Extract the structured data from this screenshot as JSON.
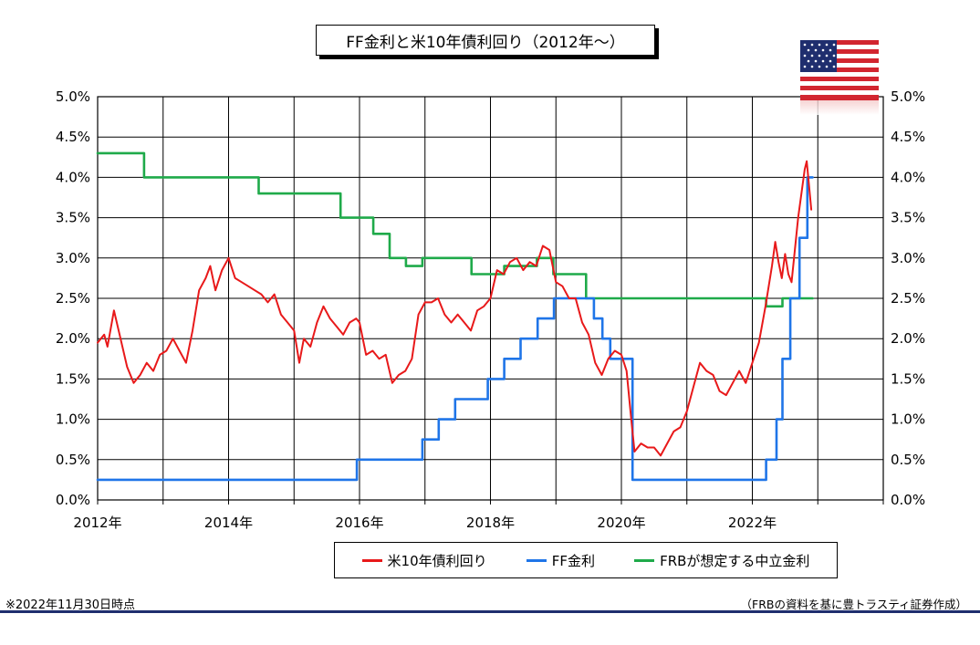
{
  "footnote": "※2022年11月30日時点",
  "source": "（FRBの資料を基に豊トラスティ証券作成）",
  "chart_data": {
    "type": "line",
    "title": "FF金利と米10年債利回り（2012年～）",
    "xlim": [
      2012.0,
      2024.0
    ],
    "ylim": [
      0.0,
      5.0
    ],
    "grid": true,
    "legend_position": "bottom",
    "y_ticks": [
      "0.0%",
      "0.5%",
      "1.0%",
      "1.5%",
      "2.0%",
      "2.5%",
      "3.0%",
      "3.5%",
      "4.0%",
      "4.5%",
      "5.0%"
    ],
    "x_ticks": [
      {
        "year": 2012,
        "label": "2012年"
      },
      {
        "year": 2014,
        "label": "2014年"
      },
      {
        "year": 2016,
        "label": "2016年"
      },
      {
        "year": 2018,
        "label": "2018年"
      },
      {
        "year": 2020,
        "label": "2020年"
      },
      {
        "year": 2022,
        "label": "2022年"
      }
    ],
    "series": [
      {
        "name": "米10年債利回り",
        "color": "#e8191a",
        "step": false,
        "points": [
          [
            2012.0,
            1.95
          ],
          [
            2012.1,
            2.05
          ],
          [
            2012.15,
            1.9
          ],
          [
            2012.25,
            2.35
          ],
          [
            2012.35,
            2.0
          ],
          [
            2012.45,
            1.65
          ],
          [
            2012.55,
            1.45
          ],
          [
            2012.65,
            1.55
          ],
          [
            2012.75,
            1.7
          ],
          [
            2012.85,
            1.6
          ],
          [
            2012.95,
            1.8
          ],
          [
            2013.05,
            1.85
          ],
          [
            2013.15,
            2.0
          ],
          [
            2013.25,
            1.85
          ],
          [
            2013.35,
            1.7
          ],
          [
            2013.45,
            2.1
          ],
          [
            2013.55,
            2.6
          ],
          [
            2013.65,
            2.75
          ],
          [
            2013.72,
            2.9
          ],
          [
            2013.8,
            2.6
          ],
          [
            2013.9,
            2.85
          ],
          [
            2014.0,
            3.0
          ],
          [
            2014.1,
            2.75
          ],
          [
            2014.2,
            2.7
          ],
          [
            2014.3,
            2.65
          ],
          [
            2014.4,
            2.6
          ],
          [
            2014.5,
            2.55
          ],
          [
            2014.6,
            2.45
          ],
          [
            2014.7,
            2.55
          ],
          [
            2014.8,
            2.3
          ],
          [
            2014.9,
            2.2
          ],
          [
            2015.0,
            2.1
          ],
          [
            2015.08,
            1.7
          ],
          [
            2015.15,
            2.0
          ],
          [
            2015.25,
            1.9
          ],
          [
            2015.35,
            2.2
          ],
          [
            2015.45,
            2.4
          ],
          [
            2015.55,
            2.25
          ],
          [
            2015.65,
            2.15
          ],
          [
            2015.75,
            2.05
          ],
          [
            2015.85,
            2.2
          ],
          [
            2015.95,
            2.25
          ],
          [
            2016.0,
            2.2
          ],
          [
            2016.1,
            1.8
          ],
          [
            2016.2,
            1.85
          ],
          [
            2016.3,
            1.75
          ],
          [
            2016.4,
            1.8
          ],
          [
            2016.5,
            1.45
          ],
          [
            2016.6,
            1.55
          ],
          [
            2016.7,
            1.6
          ],
          [
            2016.8,
            1.75
          ],
          [
            2016.9,
            2.3
          ],
          [
            2017.0,
            2.45
          ],
          [
            2017.1,
            2.45
          ],
          [
            2017.2,
            2.5
          ],
          [
            2017.3,
            2.3
          ],
          [
            2017.4,
            2.2
          ],
          [
            2017.5,
            2.3
          ],
          [
            2017.6,
            2.2
          ],
          [
            2017.7,
            2.1
          ],
          [
            2017.8,
            2.35
          ],
          [
            2017.9,
            2.4
          ],
          [
            2018.0,
            2.5
          ],
          [
            2018.1,
            2.85
          ],
          [
            2018.2,
            2.8
          ],
          [
            2018.3,
            2.95
          ],
          [
            2018.4,
            3.0
          ],
          [
            2018.5,
            2.85
          ],
          [
            2018.6,
            2.95
          ],
          [
            2018.7,
            2.9
          ],
          [
            2018.8,
            3.15
          ],
          [
            2018.9,
            3.1
          ],
          [
            2019.0,
            2.7
          ],
          [
            2019.1,
            2.65
          ],
          [
            2019.2,
            2.5
          ],
          [
            2019.3,
            2.5
          ],
          [
            2019.4,
            2.2
          ],
          [
            2019.5,
            2.05
          ],
          [
            2019.6,
            1.7
          ],
          [
            2019.7,
            1.55
          ],
          [
            2019.8,
            1.75
          ],
          [
            2019.9,
            1.85
          ],
          [
            2020.0,
            1.8
          ],
          [
            2020.08,
            1.6
          ],
          [
            2020.15,
            1.0
          ],
          [
            2020.2,
            0.6
          ],
          [
            2020.3,
            0.7
          ],
          [
            2020.4,
            0.65
          ],
          [
            2020.5,
            0.65
          ],
          [
            2020.6,
            0.55
          ],
          [
            2020.7,
            0.7
          ],
          [
            2020.8,
            0.85
          ],
          [
            2020.9,
            0.9
          ],
          [
            2021.0,
            1.1
          ],
          [
            2021.1,
            1.4
          ],
          [
            2021.2,
            1.7
          ],
          [
            2021.3,
            1.6
          ],
          [
            2021.4,
            1.55
          ],
          [
            2021.5,
            1.35
          ],
          [
            2021.6,
            1.3
          ],
          [
            2021.7,
            1.45
          ],
          [
            2021.8,
            1.6
          ],
          [
            2021.9,
            1.45
          ],
          [
            2022.0,
            1.7
          ],
          [
            2022.1,
            1.95
          ],
          [
            2022.2,
            2.4
          ],
          [
            2022.3,
            2.9
          ],
          [
            2022.35,
            3.2
          ],
          [
            2022.4,
            2.95
          ],
          [
            2022.45,
            2.75
          ],
          [
            2022.5,
            3.05
          ],
          [
            2022.55,
            2.8
          ],
          [
            2022.6,
            2.7
          ],
          [
            2022.65,
            3.1
          ],
          [
            2022.7,
            3.5
          ],
          [
            2022.75,
            3.8
          ],
          [
            2022.8,
            4.1
          ],
          [
            2022.83,
            4.2
          ],
          [
            2022.86,
            3.95
          ],
          [
            2022.9,
            3.6
          ]
        ]
      },
      {
        "name": "FF金利",
        "color": "#1f75e8",
        "step": true,
        "points": [
          [
            2012.0,
            0.25
          ],
          [
            2015.96,
            0.25
          ],
          [
            2015.96,
            0.5
          ],
          [
            2016.96,
            0.5
          ],
          [
            2016.96,
            0.75
          ],
          [
            2017.21,
            0.75
          ],
          [
            2017.21,
            1.0
          ],
          [
            2017.46,
            1.0
          ],
          [
            2017.46,
            1.25
          ],
          [
            2017.96,
            1.25
          ],
          [
            2017.96,
            1.5
          ],
          [
            2018.21,
            1.5
          ],
          [
            2018.21,
            1.75
          ],
          [
            2018.46,
            1.75
          ],
          [
            2018.46,
            2.0
          ],
          [
            2018.72,
            2.0
          ],
          [
            2018.72,
            2.25
          ],
          [
            2018.97,
            2.25
          ],
          [
            2018.97,
            2.5
          ],
          [
            2019.58,
            2.5
          ],
          [
            2019.58,
            2.25
          ],
          [
            2019.71,
            2.25
          ],
          [
            2019.71,
            2.0
          ],
          [
            2019.83,
            2.0
          ],
          [
            2019.83,
            1.75
          ],
          [
            2020.17,
            1.75
          ],
          [
            2020.17,
            0.25
          ],
          [
            2022.21,
            0.25
          ],
          [
            2022.21,
            0.5
          ],
          [
            2022.37,
            0.5
          ],
          [
            2022.37,
            1.0
          ],
          [
            2022.46,
            1.0
          ],
          [
            2022.46,
            1.75
          ],
          [
            2022.58,
            1.75
          ],
          [
            2022.58,
            2.5
          ],
          [
            2022.72,
            2.5
          ],
          [
            2022.72,
            3.25
          ],
          [
            2022.84,
            3.25
          ],
          [
            2022.84,
            4.0
          ],
          [
            2022.92,
            4.0
          ]
        ]
      },
      {
        "name": "FRBが想定する中立金利",
        "color": "#1faa4a",
        "step": true,
        "points": [
          [
            2012.0,
            4.3
          ],
          [
            2012.71,
            4.3
          ],
          [
            2012.71,
            4.0
          ],
          [
            2014.46,
            4.0
          ],
          [
            2014.46,
            3.8
          ],
          [
            2015.71,
            3.8
          ],
          [
            2015.71,
            3.5
          ],
          [
            2016.21,
            3.5
          ],
          [
            2016.21,
            3.3
          ],
          [
            2016.46,
            3.3
          ],
          [
            2016.46,
            3.0
          ],
          [
            2016.71,
            3.0
          ],
          [
            2016.71,
            2.9
          ],
          [
            2016.96,
            2.9
          ],
          [
            2016.96,
            3.0
          ],
          [
            2017.71,
            3.0
          ],
          [
            2017.71,
            2.8
          ],
          [
            2018.21,
            2.8
          ],
          [
            2018.21,
            2.9
          ],
          [
            2018.71,
            2.9
          ],
          [
            2018.71,
            3.0
          ],
          [
            2018.96,
            3.0
          ],
          [
            2018.96,
            2.8
          ],
          [
            2019.46,
            2.8
          ],
          [
            2019.46,
            2.5
          ],
          [
            2022.21,
            2.5
          ],
          [
            2022.21,
            2.4
          ],
          [
            2022.46,
            2.4
          ],
          [
            2022.46,
            2.5
          ],
          [
            2022.92,
            2.5
          ]
        ]
      }
    ]
  }
}
